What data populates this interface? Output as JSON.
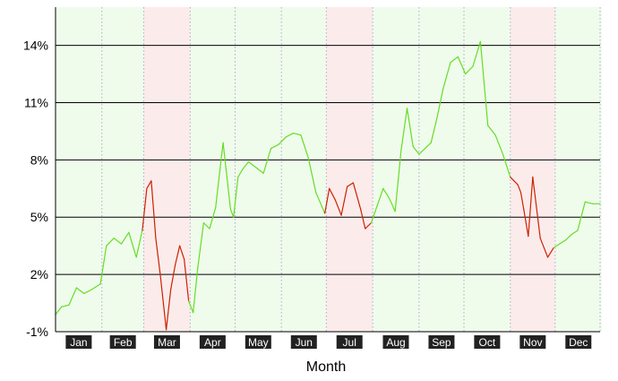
{
  "chart_data": {
    "type": "line",
    "title": "",
    "xlabel": "Month",
    "ylabel": "",
    "ylim": [
      -1,
      16
    ],
    "y_ticks": [
      -1,
      2,
      5,
      8,
      11,
      14
    ],
    "y_tick_labels": [
      "-1%",
      "2%",
      "5%",
      "8%",
      "11%",
      "14%"
    ],
    "grid": "horizontal lines at ticks, dotted vertical lines at month starts",
    "legend": "none",
    "months": [
      "Jan",
      "Feb",
      "Mar",
      "Apr",
      "May",
      "Jun",
      "Jul",
      "Aug",
      "Sep",
      "Oct",
      "Nov",
      "Dec"
    ],
    "month_trend": [
      "up",
      "up",
      "down",
      "up",
      "up",
      "up",
      "down",
      "up",
      "up",
      "up",
      "down",
      "up"
    ],
    "colors": {
      "up_line": "#66dd22",
      "down_line": "#cc2200",
      "up_band": "#effcec",
      "down_band": "#fcebeb",
      "tick_label_box": "#222222"
    },
    "series": [
      {
        "x_day": [
          1,
          5,
          10,
          15,
          20,
          25,
          31,
          35,
          40,
          45,
          50,
          55,
          59,
          62,
          65,
          68,
          71,
          75,
          78,
          81,
          84,
          87,
          90,
          93,
          96,
          100,
          104,
          108,
          113,
          118,
          120,
          123,
          126,
          130,
          135,
          140,
          145,
          150,
          155,
          160,
          165,
          170,
          175,
          181,
          184,
          188,
          192,
          196,
          200,
          205,
          208,
          212,
          216,
          220,
          224,
          228,
          232,
          236,
          240,
          244,
          248,
          252,
          256,
          260,
          265,
          270,
          275,
          280,
          285,
          290,
          295,
          300,
          305,
          310,
          312,
          314,
          317,
          320,
          325,
          330,
          334,
          338,
          342,
          346,
          350,
          355,
          360,
          365
        ],
        "y": [
          -0.1,
          0.3,
          0.4,
          1.3,
          1.0,
          1.2,
          1.5,
          3.5,
          3.9,
          3.6,
          4.2,
          2.9,
          4.3,
          6.5,
          6.9,
          3.9,
          2.0,
          -0.9,
          1.2,
          2.5,
          3.5,
          2.8,
          0.6,
          0.0,
          2.3,
          4.7,
          4.4,
          5.5,
          8.9,
          5.4,
          5.0,
          7.1,
          7.5,
          7.9,
          7.6,
          7.3,
          8.6,
          8.8,
          9.2,
          9.4,
          9.3,
          8.1,
          6.3,
          5.2,
          6.5,
          5.9,
          5.1,
          6.6,
          6.8,
          5.4,
          4.4,
          4.7,
          5.6,
          6.5,
          6.0,
          5.3,
          8.5,
          10.7,
          8.7,
          8.3,
          8.6,
          8.9,
          10.2,
          11.7,
          13.1,
          13.4,
          12.5,
          12.9,
          14.2,
          9.8,
          9.3,
          8.3,
          7.1,
          6.7,
          6.3,
          5.4,
          4.0,
          7.1,
          3.9,
          2.9,
          3.4,
          3.6,
          3.8,
          4.1,
          4.3,
          5.8,
          5.7,
          5.7
        ]
      }
    ]
  }
}
